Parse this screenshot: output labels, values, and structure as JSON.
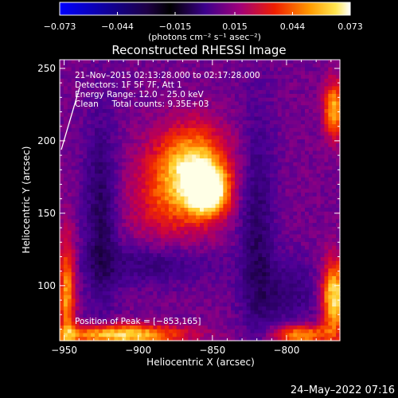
{
  "chart_data": {
    "type": "heatmap",
    "title": "Reconstructed RHESSI Image",
    "xlabel": "Heliocentric X (arcsec)",
    "ylabel": "Heliocentric Y (arcsec)",
    "xlim": [
      -953,
      -764
    ],
    "ylim": [
      62,
      256
    ],
    "xticks": [
      -950,
      -900,
      -850,
      -800
    ],
    "xtick_labels": [
      "−950",
      "−900",
      "−850",
      "−800"
    ],
    "yticks": [
      100,
      150,
      200,
      250
    ],
    "ytick_labels": [
      "100",
      "150",
      "200",
      "250"
    ],
    "colorbar": {
      "min": -0.073,
      "max": 0.073,
      "ticks": [
        -0.073,
        -0.044,
        -0.015,
        0.015,
        0.044,
        0.073
      ],
      "tick_labels": [
        "−0.073",
        "−0.044",
        "−0.015",
        "0.015",
        "0.044",
        "0.073"
      ],
      "unit_label": "(photons cm⁻² s⁻¹ asec⁻²)"
    },
    "annotations": [
      "21–Nov–2015 02:13:28.000 to 02:17:28.000",
      "Detectors: 1F 5F 7F, Att 1",
      "Energy Range: 12.0 – 25.0 keV",
      "Clean     Total counts: 9.35E+03"
    ],
    "peak_label": "Position of Peak = [−853,165]",
    "peak": {
      "x": -853,
      "y": 165
    },
    "grid": false
  },
  "footer": {
    "timestamp": "24–May–2022 07:16"
  }
}
